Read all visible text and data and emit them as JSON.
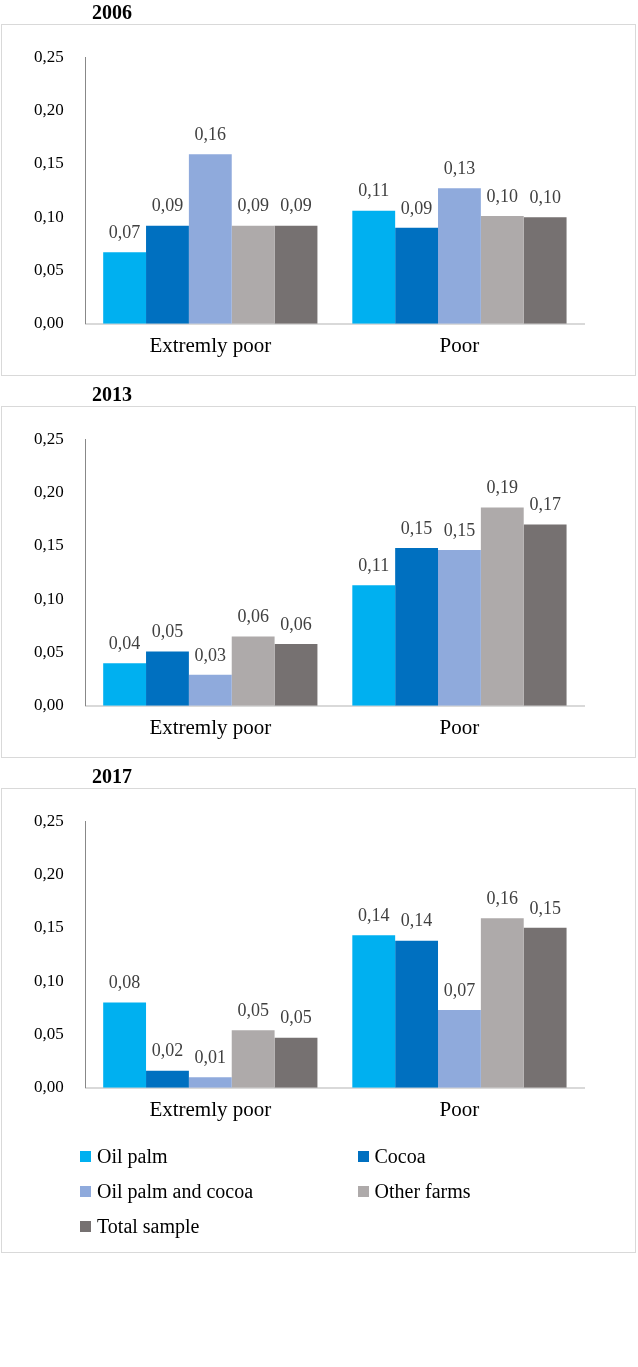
{
  "chart_data": [
    {
      "type": "bar",
      "title": "2006",
      "categories": [
        "Extremly poor",
        "Poor"
      ],
      "ylim": [
        0,
        0.25
      ],
      "yticks": [
        {
          "value": 0,
          "label": "0,00"
        },
        {
          "value": 0.05,
          "label": "0,05"
        },
        {
          "value": 0.1,
          "label": "0,10"
        },
        {
          "value": 0.15,
          "label": "0,15"
        },
        {
          "value": 0.2,
          "label": "0,20"
        },
        {
          "value": 0.25,
          "label": "0,25"
        }
      ],
      "grid": false,
      "legend": false,
      "series": [
        {
          "color": "#00b0f0",
          "values": [
            0.067,
            0.106
          ],
          "value_labels": [
            "0,07",
            "0,11"
          ]
        },
        {
          "color": "#0070c0",
          "values": [
            0.092,
            0.09
          ],
          "value_labels": [
            "0,09",
            "0,09"
          ]
        },
        {
          "color": "#8faadc",
          "values": [
            0.159,
            0.127
          ],
          "value_labels": [
            "0,16",
            "0,13"
          ]
        },
        {
          "color": "#aeaaaa",
          "values": [
            0.092,
            0.101
          ],
          "value_labels": [
            "0,09",
            "0,10"
          ]
        },
        {
          "color": "#767171",
          "values": [
            0.092,
            0.1
          ],
          "value_labels": [
            "0,09",
            "0,10"
          ]
        }
      ]
    },
    {
      "type": "bar",
      "title": "2013",
      "categories": [
        "Extremly poor",
        "Poor"
      ],
      "ylim": [
        0,
        0.25
      ],
      "yticks": [
        {
          "value": 0,
          "label": "0,00"
        },
        {
          "value": 0.05,
          "label": "0,05"
        },
        {
          "value": 0.1,
          "label": "0,10"
        },
        {
          "value": 0.15,
          "label": "0,15"
        },
        {
          "value": 0.2,
          "label": "0,20"
        },
        {
          "value": 0.25,
          "label": "0,25"
        }
      ],
      "grid": false,
      "legend": false,
      "series": [
        {
          "color": "#00b0f0",
          "values": [
            0.04,
            0.113
          ],
          "value_labels": [
            "0,04",
            "0,11"
          ]
        },
        {
          "color": "#0070c0",
          "values": [
            0.051,
            0.148
          ],
          "value_labels": [
            "0,05",
            "0,15"
          ]
        },
        {
          "color": "#8faadc",
          "values": [
            0.029,
            0.146
          ],
          "value_labels": [
            "0,03",
            "0,15"
          ]
        },
        {
          "color": "#aeaaaa",
          "values": [
            0.065,
            0.186
          ],
          "value_labels": [
            "0,06",
            "0,19"
          ]
        },
        {
          "color": "#767171",
          "values": [
            0.058,
            0.17
          ],
          "value_labels": [
            "0,06",
            "0,17"
          ]
        }
      ]
    },
    {
      "type": "bar",
      "title": "2017",
      "categories": [
        "Extremly poor",
        "Poor"
      ],
      "ylim": [
        0,
        0.25
      ],
      "yticks": [
        {
          "value": 0,
          "label": "0,00"
        },
        {
          "value": 0.05,
          "label": "0,05"
        },
        {
          "value": 0.1,
          "label": "0,10"
        },
        {
          "value": 0.15,
          "label": "0,15"
        },
        {
          "value": 0.2,
          "label": "0,20"
        },
        {
          "value": 0.25,
          "label": "0,25"
        }
      ],
      "grid": false,
      "legend": "bottom",
      "series": [
        {
          "name": "Oil palm",
          "color": "#00b0f0",
          "values": [
            0.08,
            0.143
          ],
          "value_labels": [
            "0,08",
            "0,14"
          ]
        },
        {
          "name": "Cocoa",
          "color": "#0070c0",
          "values": [
            0.016,
            0.138
          ],
          "value_labels": [
            "0,02",
            "0,14"
          ]
        },
        {
          "name": "Oil palm and cocoa",
          "color": "#8faadc",
          "values": [
            0.01,
            0.073
          ],
          "value_labels": [
            "0,01",
            "0,07"
          ]
        },
        {
          "name": "Other farms",
          "color": "#aeaaaa",
          "values": [
            0.054,
            0.159
          ],
          "value_labels": [
            "0,05",
            "0,16"
          ]
        },
        {
          "name": "Total sample",
          "color": "#767171",
          "values": [
            0.047,
            0.15
          ],
          "value_labels": [
            "0,05",
            "0,15"
          ]
        }
      ]
    }
  ]
}
